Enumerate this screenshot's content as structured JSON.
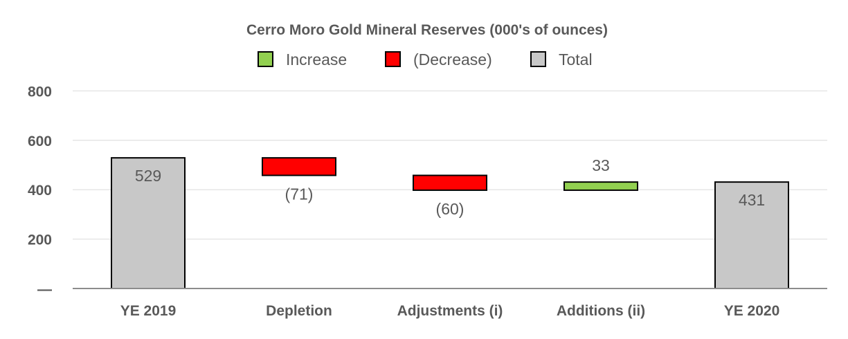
{
  "chart_data": {
    "type": "bar",
    "subtype": "waterfall",
    "title": "Cerro Moro Gold Mineral Reserves (000's of ounces)",
    "legend": [
      {
        "key": "increase",
        "label": "Increase",
        "color": "#92d050"
      },
      {
        "key": "decrease",
        "label": "(Decrease)",
        "color": "#ff0000"
      },
      {
        "key": "total",
        "label": "Total",
        "color": "#c8c8c8"
      }
    ],
    "legend_position": "top-center",
    "y_ticks": [
      {
        "value": 0,
        "label": "—"
      },
      {
        "value": 200,
        "label": "200"
      },
      {
        "value": 400,
        "label": "400"
      },
      {
        "value": 600,
        "label": "600"
      },
      {
        "value": 800,
        "label": "800"
      }
    ],
    "ylim": [
      0,
      800
    ],
    "grid": true,
    "categories": [
      "YE 2019",
      "Depletion",
      "Adjustments (i)",
      "Additions (ii)",
      "YE 2020"
    ],
    "bars": [
      {
        "category": "YE 2019",
        "kind": "total",
        "start": 0,
        "end": 529,
        "label": "529",
        "label_pos": "inside-top"
      },
      {
        "category": "Depletion",
        "kind": "decrease",
        "start": 529,
        "end": 458,
        "label": "(71)",
        "label_pos": "below"
      },
      {
        "category": "Adjustments (i)",
        "kind": "decrease",
        "start": 458,
        "end": 398,
        "label": "(60)",
        "label_pos": "below"
      },
      {
        "category": "Additions (ii)",
        "kind": "increase",
        "start": 398,
        "end": 431,
        "label": "33",
        "label_pos": "above"
      },
      {
        "category": "YE 2020",
        "kind": "total",
        "start": 0,
        "end": 431,
        "label": "431",
        "label_pos": "inside-top"
      }
    ]
  }
}
